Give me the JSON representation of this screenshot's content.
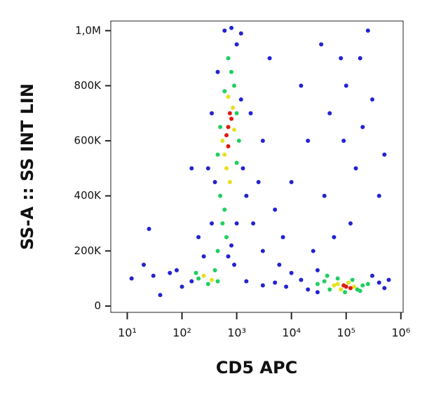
{
  "chart_data": {
    "type": "scatter",
    "x_label": "CD5 APC",
    "y_label": "SS-A :: SS INT LIN",
    "log_x": true,
    "xlim": [
      5,
      1100000
    ],
    "xticks": [
      {
        "value": 10,
        "label": "10¹"
      },
      {
        "value": 100,
        "label": "10²"
      },
      {
        "value": 1000,
        "label": "10³"
      },
      {
        "value": 10000,
        "label": "10⁴"
      },
      {
        "value": 100000,
        "label": "10⁵"
      },
      {
        "value": 1000000,
        "label": "10⁶"
      }
    ],
    "ylim": [
      -23000,
      1035000
    ],
    "yticks": [
      0,
      {
        "value": 200000,
        "label": "200K"
      },
      {
        "value": 400000,
        "label": "400K"
      },
      {
        "value": 600000,
        "label": "600K"
      },
      {
        "value": 800000,
        "label": "800K"
      },
      {
        "value": 1000000,
        "label": "1,0M"
      }
    ],
    "series": [
      {
        "color": "#2323d0",
        "x": [
          350,
          400,
          1200,
          1300,
          300,
          350,
          1000,
          600,
          800,
          1200,
          450,
          1500,
          2000,
          3000,
          2500,
          5000,
          200,
          250,
          150,
          100,
          60,
          30,
          20,
          12,
          40,
          80,
          1500,
          3000,
          5000,
          8000,
          15000,
          20000,
          10000,
          30000,
          400000,
          500000,
          600000,
          300000,
          30000,
          20000,
          50000,
          100000,
          200000,
          80000,
          150000,
          300000,
          40000,
          120000,
          60000,
          250000,
          500000,
          15000,
          10000,
          7000,
          25000,
          180000,
          90000,
          400000,
          35000,
          3000,
          6000,
          1800,
          4000,
          700,
          900,
          800,
          1000,
          150,
          25
        ],
        "values": [
          300000,
          450000,
          750000,
          500000,
          500000,
          700000,
          950000,
          1000000,
          1010000,
          990000,
          850000,
          400000,
          300000,
          200000,
          450000,
          350000,
          250000,
          180000,
          90000,
          70000,
          120000,
          110000,
          150000,
          100000,
          40000,
          130000,
          90000,
          75000,
          85000,
          70000,
          95000,
          60000,
          120000,
          50000,
          85000,
          65000,
          95000,
          110000,
          130000,
          600000,
          700000,
          800000,
          650000,
          900000,
          500000,
          750000,
          400000,
          300000,
          250000,
          1000000,
          550000,
          800000,
          450000,
          250000,
          200000,
          900000,
          600000,
          400000,
          950000,
          600000,
          150000,
          700000,
          900000,
          180000,
          150000,
          220000,
          300000,
          500000,
          280000
        ]
      },
      {
        "color": "#1fcf5f",
        "x": [
          500,
          600,
          900,
          1000,
          500,
          450,
          800,
          700,
          1100,
          550,
          650,
          450,
          400,
          200,
          300,
          450,
          180,
          1000,
          600,
          40000,
          50000,
          200000,
          180000,
          130000,
          30000,
          250000,
          95000,
          70000,
          160000,
          45000
        ],
        "values": [
          400000,
          350000,
          800000,
          700000,
          650000,
          550000,
          850000,
          900000,
          600000,
          300000,
          250000,
          200000,
          130000,
          100000,
          80000,
          90000,
          120000,
          520000,
          780000,
          90000,
          60000,
          75000,
          55000,
          95000,
          80000,
          80000,
          50000,
          100000,
          60000,
          110000
        ]
      },
      {
        "color": "#e6e020",
        "x": [
          600,
          850,
          700,
          650,
          900,
          550,
          70000,
          140000,
          80000,
          110000,
          250,
          350,
          60000,
          750
        ],
        "values": [
          550000,
          720000,
          760000,
          500000,
          640000,
          600000,
          80000,
          70000,
          60000,
          85000,
          110000,
          95000,
          75000,
          450000
        ]
      },
      {
        "color": "#e01a10",
        "x": [
          700,
          750,
          650,
          800,
          700,
          100000,
          90000,
          120000
        ],
        "values": [
          650000,
          700000,
          620000,
          680000,
          580000,
          70000,
          75000,
          65000
        ]
      }
    ]
  }
}
